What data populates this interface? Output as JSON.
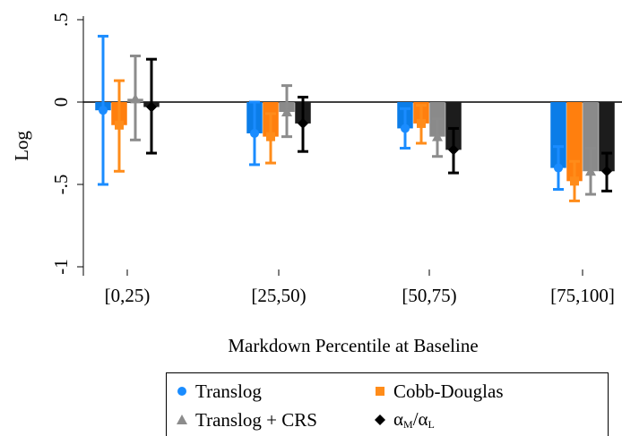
{
  "chart_data": {
    "type": "bar",
    "title": "",
    "xlabel": "Markdown Percentile at Baseline",
    "ylabel": "Log",
    "ylim": [
      -1.0,
      0.5
    ],
    "yticks": [
      0.5,
      0,
      -0.5,
      -1
    ],
    "ytick_labels": [
      ".5",
      "0",
      "-.5",
      "-1"
    ],
    "categories": [
      "[0,25)",
      "[25,50)",
      "[50,75)",
      "[75,100]"
    ],
    "grid": false,
    "error_bars": true,
    "legend_position": "bottom",
    "series": [
      {
        "name": "Translog",
        "marker": "circle",
        "color": "#1a8cff",
        "bar_color": "#0b7de8",
        "values": [
          -0.05,
          -0.19,
          -0.16,
          -0.4
        ],
        "ci_low": [
          -0.5,
          -0.38,
          -0.28,
          -0.53
        ],
        "ci_high": [
          0.4,
          0.0,
          -0.04,
          -0.27
        ]
      },
      {
        "name": "Cobb-Douglas",
        "marker": "square",
        "color": "#ff8c1a",
        "bar_color": "#ff7f0e",
        "values": [
          -0.14,
          -0.21,
          -0.13,
          -0.48
        ],
        "ci_low": [
          -0.42,
          -0.37,
          -0.25,
          -0.6
        ],
        "ci_high": [
          0.13,
          -0.07,
          -0.02,
          -0.36
        ]
      },
      {
        "name": "Translog + CRS",
        "marker": "triangle",
        "color": "#8c8c8c",
        "bar_color": "#8a8a8a",
        "values": [
          0.02,
          -0.06,
          -0.21,
          -0.42
        ],
        "ci_low": [
          -0.23,
          -0.21,
          -0.33,
          -0.56
        ],
        "ci_high": [
          0.28,
          0.1,
          -0.1,
          -0.28
        ]
      },
      {
        "name_base": "α",
        "name_sub1": "M",
        "name_slash": "/",
        "name_base2": "α",
        "name_sub2": "L",
        "marker": "diamond",
        "color": "#000000",
        "bar_color": "#1c1c1c",
        "values": [
          -0.03,
          -0.13,
          -0.29,
          -0.42
        ],
        "ci_low": [
          -0.31,
          -0.3,
          -0.43,
          -0.54
        ],
        "ci_high": [
          0.26,
          0.03,
          -0.16,
          -0.31
        ]
      }
    ]
  }
}
